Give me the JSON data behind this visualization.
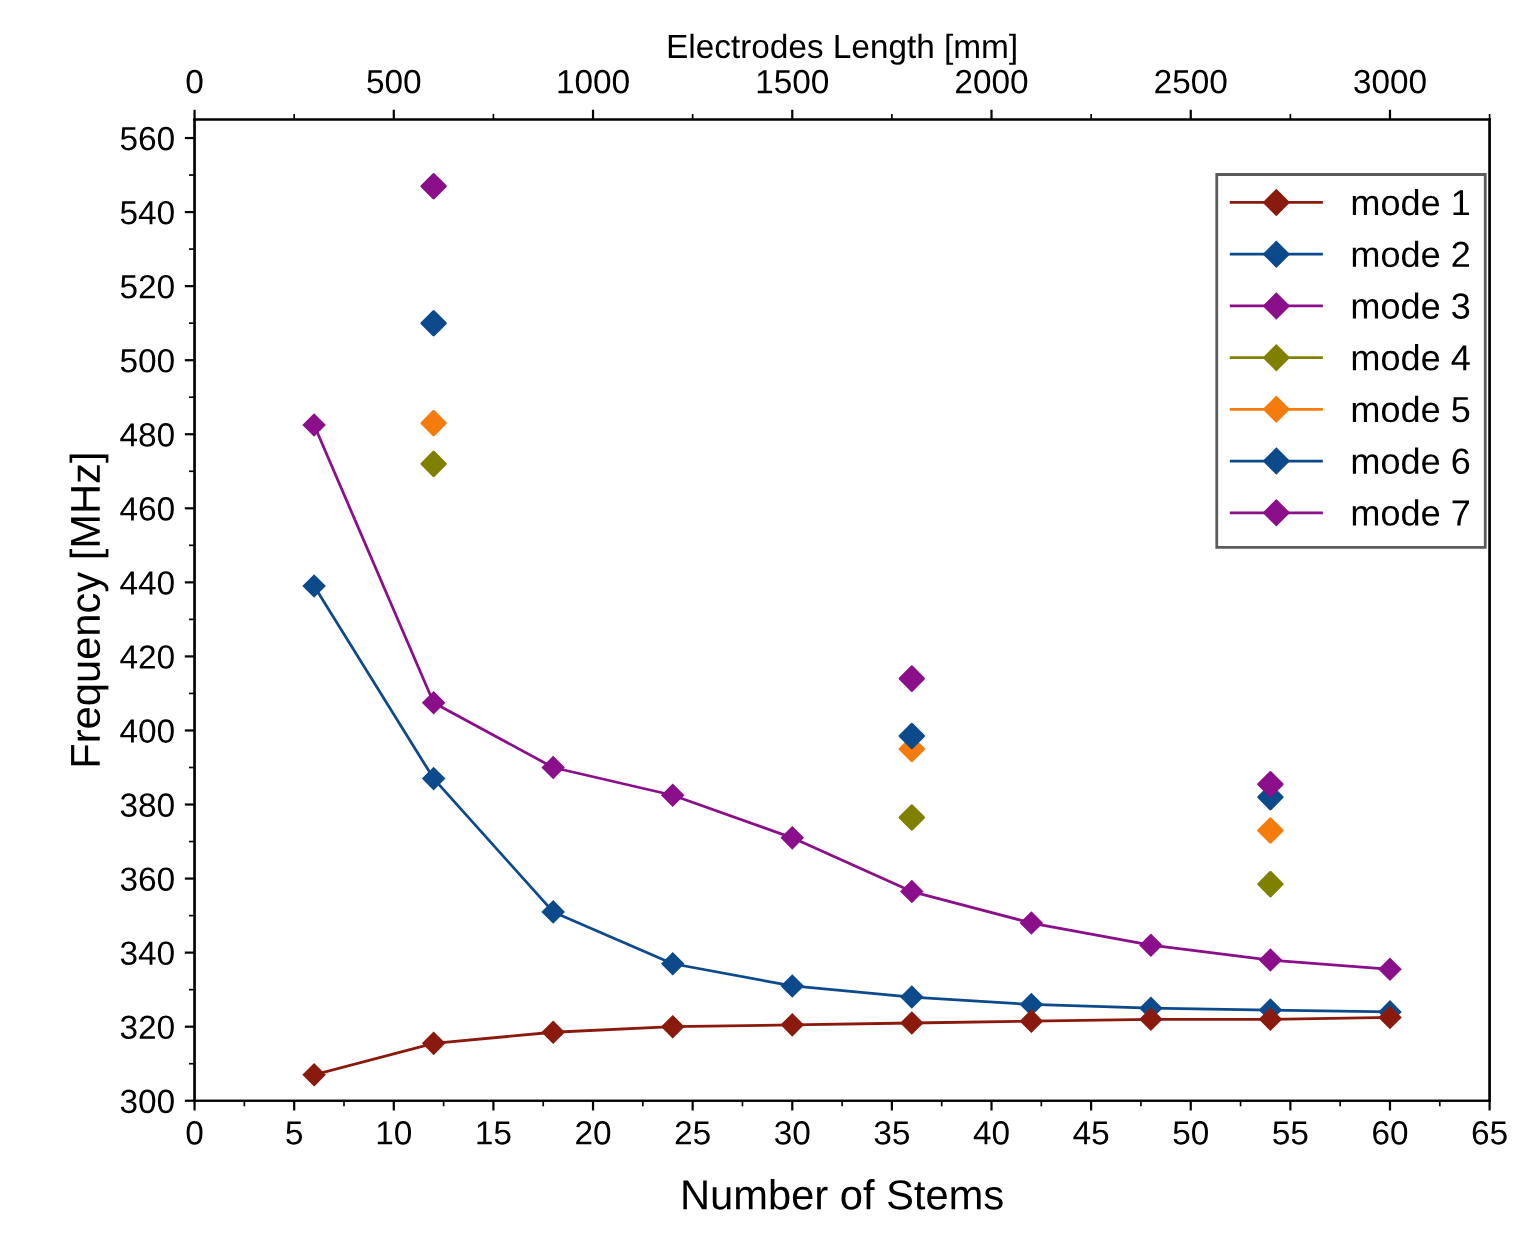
{
  "chart_data": {
    "type": "line",
    "xlabel": "Number of Stems",
    "ylabel": "Frequency [MHz]",
    "x2label": "Electrodes Length [mm]",
    "x": [
      6,
      12,
      18,
      24,
      30,
      36,
      42,
      48,
      54,
      60
    ],
    "series": [
      {
        "name": "mode 1",
        "color": "#8b1a0e",
        "values": [
          307,
          315.5,
          318.5,
          320,
          320.5,
          321,
          321.5,
          322,
          322,
          322.5
        ]
      },
      {
        "name": "mode 2",
        "color": "#0c4a8c",
        "values": [
          439,
          387,
          351,
          337,
          331,
          328,
          326,
          325,
          324.5,
          324
        ]
      },
      {
        "name": "mode 3",
        "color": "#8b0f8b",
        "values": [
          482.5,
          407.5,
          390,
          382.5,
          371,
          356.5,
          348,
          342,
          338,
          335.5
        ]
      },
      {
        "name": "mode 4",
        "color": "#808000",
        "type": "scatter",
        "x": [
          12,
          36,
          54
        ],
        "values": [
          472,
          376.5,
          358.5
        ]
      },
      {
        "name": "mode 5",
        "color": "#f57c0c",
        "type": "scatter",
        "x": [
          12,
          36,
          54
        ],
        "values": [
          483,
          395,
          373
        ]
      },
      {
        "name": "mode 6",
        "color": "#0c4a8c",
        "type": "scatter",
        "x": [
          12,
          36,
          54
        ],
        "values": [
          510,
          398.5,
          382
        ]
      },
      {
        "name": "mode 7",
        "color": "#8b0f8b",
        "type": "scatter",
        "x": [
          12,
          36,
          54
        ],
        "values": [
          547,
          414,
          385.5
        ]
      }
    ],
    "xlim": [
      0,
      65
    ],
    "xticks": [
      0,
      5,
      10,
      15,
      20,
      25,
      30,
      35,
      40,
      45,
      50,
      55,
      60,
      65
    ],
    "ylim": [
      300,
      565
    ],
    "yticks": [
      300,
      320,
      340,
      360,
      380,
      400,
      420,
      440,
      460,
      480,
      500,
      520,
      540,
      560
    ],
    "x2lim": [
      0,
      3250
    ],
    "x2ticks": [
      0,
      500,
      1000,
      1500,
      2000,
      2500,
      3000
    ],
    "marker": "diamond",
    "grid": false,
    "legend": "top right"
  }
}
